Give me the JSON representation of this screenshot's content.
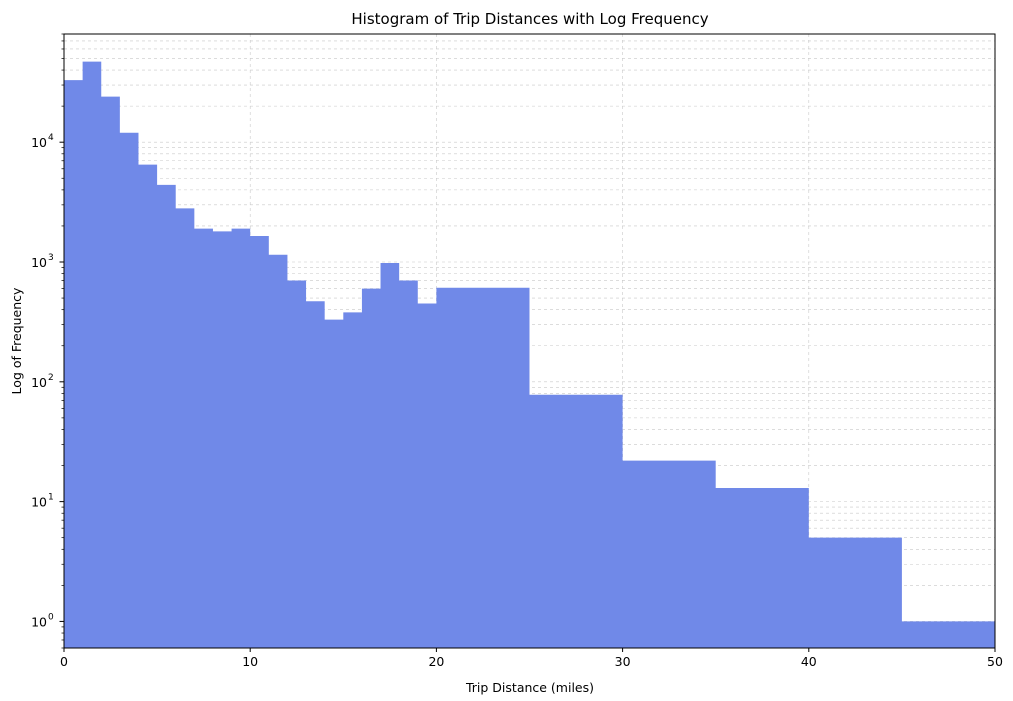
{
  "chart_data": {
    "type": "bar",
    "subtype": "histogram",
    "title": "Histogram of Trip Distances with Log Frequency",
    "xlabel": "Trip Distance (miles)",
    "ylabel": "Log of Frequency",
    "xlim": [
      0,
      50
    ],
    "ylim": [
      0.6,
      80000
    ],
    "yscale": "log",
    "grid": true,
    "bar_color": "#7089e8",
    "x_ticks": [
      0,
      10,
      20,
      30,
      40,
      50
    ],
    "x_tick_labels": [
      "0",
      "10",
      "20",
      "30",
      "40",
      "50"
    ],
    "y_ticks": [
      1,
      10,
      100,
      1000,
      10000
    ],
    "y_tick_labels": [
      "10",
      "10",
      "10",
      "10",
      "10"
    ],
    "y_tick_exponents": [
      "0",
      "1",
      "2",
      "3",
      "4"
    ],
    "bins": [
      {
        "start": 0,
        "end": 1,
        "value": 33000
      },
      {
        "start": 1,
        "end": 2,
        "value": 47000
      },
      {
        "start": 2,
        "end": 3,
        "value": 24000
      },
      {
        "start": 3,
        "end": 4,
        "value": 12000
      },
      {
        "start": 4,
        "end": 5,
        "value": 6500
      },
      {
        "start": 5,
        "end": 6,
        "value": 4400
      },
      {
        "start": 6,
        "end": 7,
        "value": 2800
      },
      {
        "start": 7,
        "end": 8,
        "value": 1900
      },
      {
        "start": 8,
        "end": 9,
        "value": 1800
      },
      {
        "start": 9,
        "end": 10,
        "value": 1900
      },
      {
        "start": 10,
        "end": 11,
        "value": 1650
      },
      {
        "start": 11,
        "end": 12,
        "value": 1150
      },
      {
        "start": 12,
        "end": 13,
        "value": 700
      },
      {
        "start": 13,
        "end": 14,
        "value": 470
      },
      {
        "start": 14,
        "end": 15,
        "value": 330
      },
      {
        "start": 15,
        "end": 16,
        "value": 380
      },
      {
        "start": 16,
        "end": 17,
        "value": 600
      },
      {
        "start": 17,
        "end": 18,
        "value": 980
      },
      {
        "start": 18,
        "end": 19,
        "value": 700
      },
      {
        "start": 19,
        "end": 20,
        "value": 450
      },
      {
        "start": 20,
        "end": 25,
        "value": 610
      },
      {
        "start": 25,
        "end": 30,
        "value": 78
      },
      {
        "start": 30,
        "end": 35,
        "value": 22
      },
      {
        "start": 35,
        "end": 40,
        "value": 13
      },
      {
        "start": 40,
        "end": 45,
        "value": 5
      },
      {
        "start": 45,
        "end": 50,
        "value": 1
      }
    ]
  }
}
